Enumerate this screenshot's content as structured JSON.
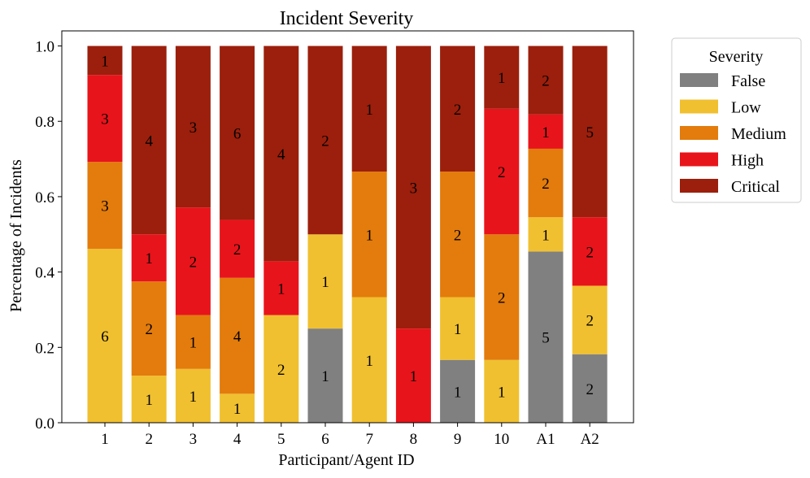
{
  "chart_data": {
    "type": "bar",
    "stacked": true,
    "normalized": true,
    "title": "Incident Severity",
    "xlabel": "Participant/Agent ID",
    "ylabel": "Percentage of Incidents",
    "ylim": [
      0,
      1.04
    ],
    "yticks": [
      "0.0",
      "0.2",
      "0.4",
      "0.6",
      "0.8",
      "1.0"
    ],
    "categories": [
      "1",
      "2",
      "3",
      "4",
      "5",
      "6",
      "7",
      "8",
      "9",
      "10",
      "A1",
      "A2"
    ],
    "legend": {
      "title": "Severity",
      "placement": "outside-right-top"
    },
    "series": [
      {
        "name": "False",
        "color": "#808080",
        "counts": [
          0,
          0,
          0,
          0,
          0,
          1,
          0,
          0,
          1,
          0,
          5,
          2
        ]
      },
      {
        "name": "Low",
        "color": "#f0c030",
        "counts": [
          6,
          1,
          1,
          1,
          2,
          1,
          1,
          0,
          1,
          1,
          1,
          2
        ]
      },
      {
        "name": "Medium",
        "color": "#e37c0c",
        "counts": [
          3,
          2,
          1,
          4,
          0,
          0,
          1,
          0,
          2,
          2,
          2,
          0
        ]
      },
      {
        "name": "High",
        "color": "#e8141b",
        "counts": [
          3,
          1,
          2,
          2,
          1,
          0,
          0,
          1,
          0,
          2,
          1,
          2
        ]
      },
      {
        "name": "Critical",
        "color": "#9b1f0c",
        "counts": [
          1,
          4,
          3,
          6,
          4,
          2,
          1,
          3,
          2,
          1,
          2,
          5
        ]
      }
    ]
  }
}
